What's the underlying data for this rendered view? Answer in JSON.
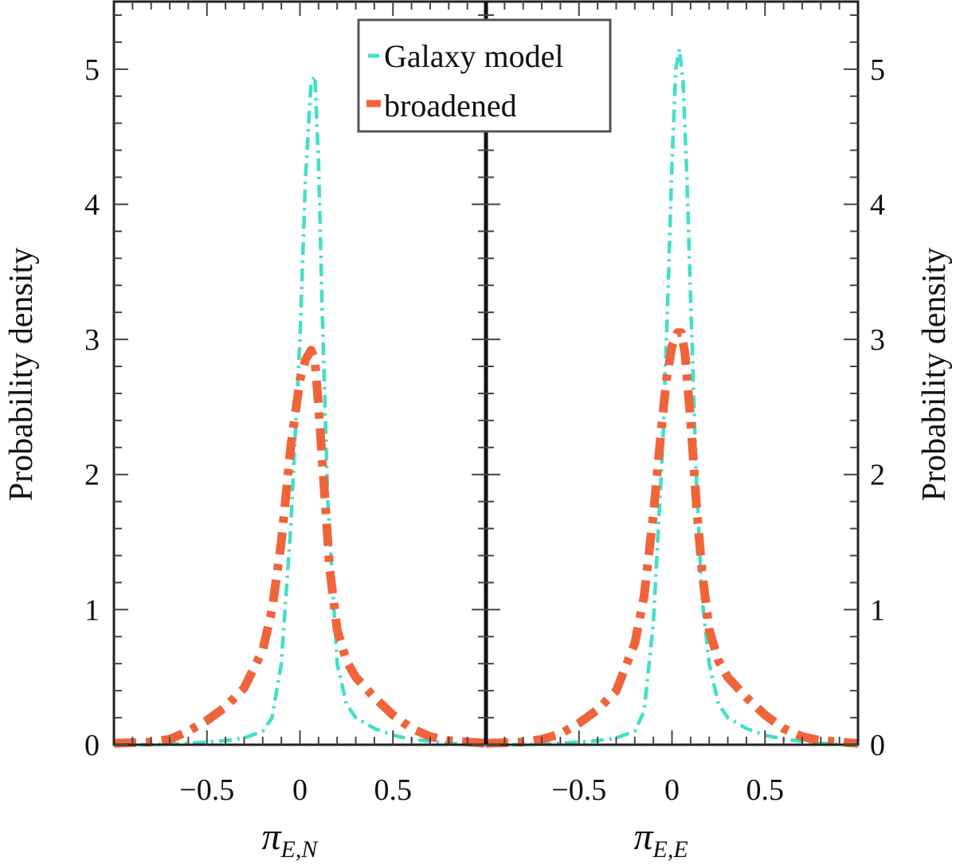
{
  "chart_data": {
    "type": "line",
    "ylabel": "Probability density",
    "ylim": [
      0,
      5.5
    ],
    "yticks": [
      0,
      1,
      2,
      3,
      4,
      5
    ],
    "xlim": [
      -1.0,
      1.0
    ],
    "xticks": [
      -0.5,
      0,
      0.5
    ],
    "legend": {
      "placement": "top-center",
      "entries": [
        {
          "name": "Galaxy model",
          "color": "#40E0C8",
          "style": "dash-dot"
        },
        {
          "name": "broadened",
          "color": "#F0643A",
          "style": "thick dash-dot"
        }
      ]
    },
    "panels": [
      {
        "xlabel_symbol": "π",
        "xlabel_sub_roman": "E,",
        "xlabel_sub_italic": "N",
        "series": [
          {
            "name": "Galaxy model",
            "x": [
              -1.0,
              -0.8,
              -0.6,
              -0.4,
              -0.3,
              -0.2,
              -0.15,
              -0.1,
              -0.05,
              0.0,
              0.03,
              0.06,
              0.08,
              0.1,
              0.12,
              0.15,
              0.2,
              0.25,
              0.3,
              0.4,
              0.5,
              0.6,
              0.8,
              1.0
            ],
            "values": [
              0.0,
              0.0,
              0.01,
              0.03,
              0.05,
              0.1,
              0.2,
              0.6,
              1.6,
              3.0,
              4.2,
              4.9,
              4.95,
              4.3,
              3.2,
              1.8,
              0.6,
              0.3,
              0.2,
              0.12,
              0.07,
              0.04,
              0.01,
              0.0
            ]
          },
          {
            "name": "broadened",
            "x": [
              -1.0,
              -0.8,
              -0.7,
              -0.6,
              -0.5,
              -0.4,
              -0.3,
              -0.2,
              -0.15,
              -0.1,
              -0.05,
              0.0,
              0.03,
              0.06,
              0.08,
              0.1,
              0.13,
              0.16,
              0.2,
              0.25,
              0.3,
              0.4,
              0.5,
              0.6,
              0.7,
              0.8,
              1.0
            ],
            "values": [
              0.01,
              0.02,
              0.04,
              0.1,
              0.18,
              0.28,
              0.42,
              0.7,
              1.0,
              1.5,
              2.2,
              2.7,
              2.85,
              2.92,
              2.85,
              2.5,
              1.9,
              1.3,
              0.85,
              0.62,
              0.5,
              0.35,
              0.22,
              0.12,
              0.06,
              0.03,
              0.01
            ]
          }
        ]
      },
      {
        "xlabel_symbol": "π",
        "xlabel_sub_roman": "E,",
        "xlabel_sub_italic": "E",
        "series": [
          {
            "name": "Galaxy model",
            "x": [
              -1.0,
              -0.8,
              -0.6,
              -0.4,
              -0.3,
              -0.2,
              -0.15,
              -0.1,
              -0.05,
              -0.02,
              0.0,
              0.02,
              0.04,
              0.06,
              0.08,
              0.1,
              0.13,
              0.16,
              0.2,
              0.25,
              0.3,
              0.4,
              0.5,
              0.6,
              0.8,
              1.0
            ],
            "values": [
              0.0,
              0.0,
              0.01,
              0.03,
              0.05,
              0.1,
              0.25,
              0.9,
              2.2,
              3.4,
              4.3,
              5.0,
              5.15,
              4.9,
              4.2,
              3.3,
              2.0,
              1.1,
              0.6,
              0.3,
              0.2,
              0.12,
              0.07,
              0.04,
              0.01,
              0.0
            ]
          },
          {
            "name": "broadened",
            "x": [
              -1.0,
              -0.8,
              -0.7,
              -0.6,
              -0.5,
              -0.4,
              -0.3,
              -0.2,
              -0.15,
              -0.1,
              -0.06,
              -0.03,
              0.0,
              0.03,
              0.05,
              0.07,
              0.1,
              0.13,
              0.16,
              0.2,
              0.25,
              0.3,
              0.4,
              0.5,
              0.6,
              0.7,
              0.8,
              1.0
            ],
            "values": [
              0.01,
              0.02,
              0.04,
              0.08,
              0.16,
              0.26,
              0.4,
              0.75,
              1.1,
              1.7,
              2.3,
              2.7,
              2.95,
              3.05,
              3.05,
              2.9,
              2.4,
              1.8,
              1.3,
              0.85,
              0.62,
              0.5,
              0.35,
              0.22,
              0.12,
              0.06,
              0.03,
              0.01
            ]
          }
        ]
      }
    ]
  }
}
